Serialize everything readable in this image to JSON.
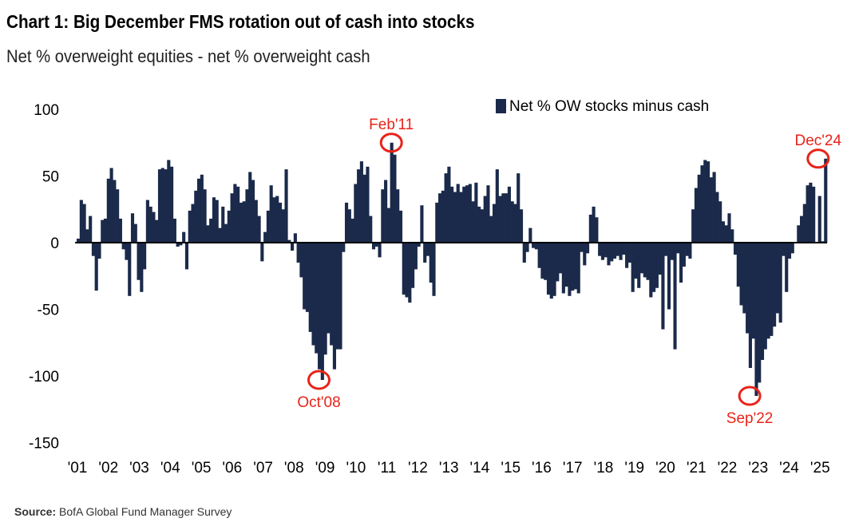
{
  "header": {
    "title": "Chart 1: Big December FMS rotation out of cash into stocks",
    "subtitle": "Net % overweight equities - net % overweight cash"
  },
  "footer": {
    "source_label": "Source:",
    "source_text": "BofA Global Fund Manager Survey"
  },
  "colors": {
    "bar": "#1b2a4a",
    "annotation": "#e8231a",
    "axis": "#000000"
  },
  "chart_data": {
    "type": "bar",
    "title": "Chart 1: Big December FMS rotation out of cash into stocks",
    "subtitle": "Net % overweight equities - net % overweight cash",
    "xlabel": "",
    "ylabel": "",
    "ylim": [
      -150,
      100
    ],
    "y_ticks": [
      100,
      50,
      0,
      -50,
      -100,
      -150
    ],
    "x_start": 2001.0,
    "x_end": 2025.25,
    "x_tick_labels": [
      "'01",
      "'02",
      "'03",
      "'04",
      "'05",
      "'06",
      "'07",
      "'08",
      "'09",
      "'10",
      "'11",
      "'12",
      "'13",
      "'14",
      "'15",
      "'16",
      "'17",
      "'18",
      "'19",
      "'20",
      "'21",
      "'22",
      "'23",
      "'24",
      "'25"
    ],
    "grid": false,
    "legend": {
      "position": "top-right"
    },
    "series": [
      {
        "name": "Net % OW stocks minus cash",
        "color": "#1b2a4a",
        "values": [
          3,
          32,
          29,
          10,
          20,
          -10,
          -36,
          -12,
          17,
          18,
          48,
          56,
          47,
          40,
          18,
          -5,
          -13,
          -40,
          22,
          14,
          -28,
          -37,
          -20,
          32,
          27,
          23,
          17,
          55,
          56,
          55,
          62,
          57,
          18,
          -3,
          -2,
          8,
          -20,
          24,
          29,
          39,
          48,
          51,
          40,
          13,
          18,
          34,
          32,
          11,
          27,
          14,
          24,
          37,
          44,
          42,
          30,
          31,
          40,
          53,
          47,
          32,
          20,
          -14,
          8,
          24,
          43,
          34,
          35,
          30,
          25,
          55,
          2,
          -6,
          7,
          -15,
          -26,
          -50,
          -52,
          -67,
          -77,
          -83,
          -95,
          -103,
          -84,
          -68,
          -77,
          -95,
          -80,
          -80,
          -7,
          30,
          25,
          18,
          44,
          55,
          61,
          51,
          57,
          20,
          -5,
          -3,
          -11,
          40,
          47,
          26,
          75,
          66,
          40,
          24,
          -39,
          -41,
          -45,
          -34,
          -20,
          -3,
          28,
          -15,
          -10,
          -30,
          -40,
          30,
          37,
          39,
          52,
          57,
          42,
          38,
          44,
          38,
          42,
          43,
          44,
          31,
          45,
          27,
          25,
          35,
          43,
          20,
          29,
          55,
          35,
          37,
          37,
          42,
          31,
          29,
          52,
          25,
          -15,
          -7,
          11,
          -4,
          -5,
          -19,
          -27,
          -28,
          -39,
          -42,
          -40,
          -29,
          -23,
          -38,
          -33,
          -40,
          -36,
          -35,
          -38,
          -7,
          -17,
          -8,
          21,
          27,
          19,
          -10,
          -13,
          -11,
          -17,
          -14,
          -12,
          -10,
          -13,
          -9,
          -19,
          -15,
          -37,
          -27,
          -34,
          -23,
          -26,
          -28,
          -41,
          -37,
          -34,
          -24,
          -65,
          -10,
          -50,
          -13,
          -80,
          -8,
          -30,
          -18,
          -10,
          -12,
          25,
          41,
          51,
          58,
          62,
          61,
          49,
          53,
          38,
          31,
          16,
          13,
          22,
          10,
          -9,
          -33,
          -47,
          -53,
          -68,
          -94,
          -72,
          -115,
          -105,
          -88,
          -80,
          -72,
          -70,
          -63,
          -53,
          -60,
          -10,
          -37,
          -12,
          -8,
          0,
          13,
          20,
          29,
          43,
          45,
          42,
          0,
          35,
          1,
          63
        ]
      }
    ],
    "annotations": [
      {
        "label": "Feb'11",
        "x": 2011.17,
        "y": 75
      },
      {
        "label": "Oct'08",
        "x": 2008.83,
        "y": -103
      },
      {
        "label": "Sep'22",
        "x": 2022.75,
        "y": -115
      },
      {
        "label": "Dec'24",
        "x": 2024.96,
        "y": 63
      }
    ]
  }
}
